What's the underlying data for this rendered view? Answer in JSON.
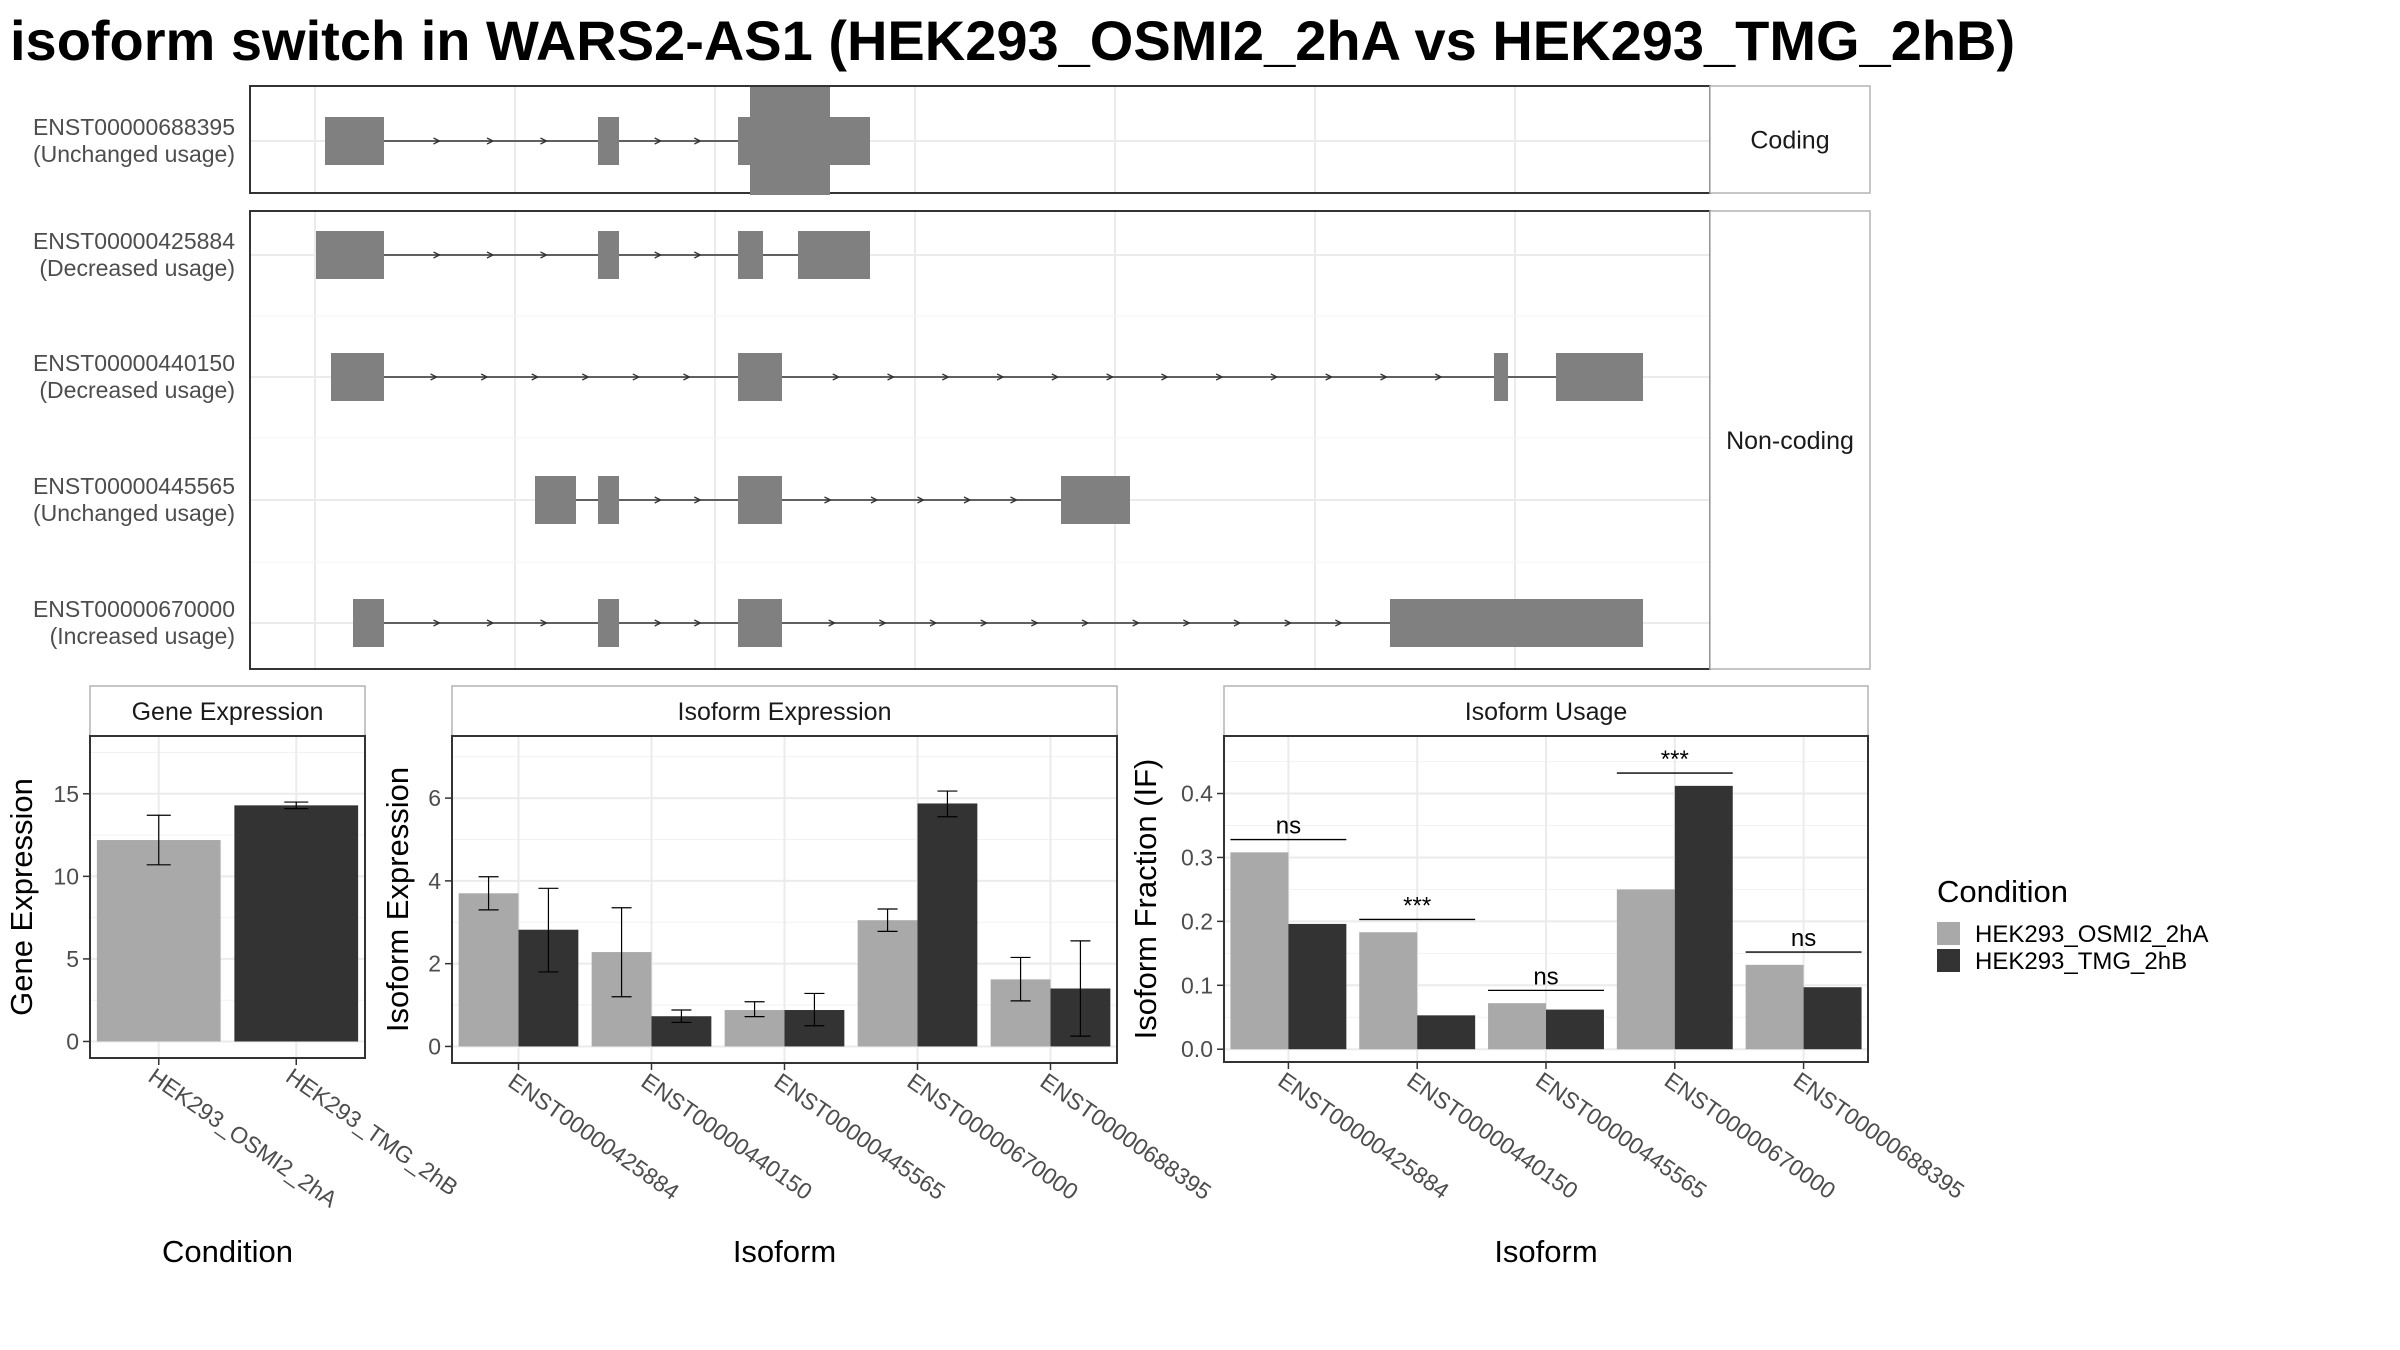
{
  "title": "isoform switch in WARS2-AS1 (HEK293_OSMI2_2hA vs HEK293_TMG_2hB)",
  "colors": {
    "cond1": "#a9a9a9",
    "cond2": "#333333",
    "exon": "#808080"
  },
  "structure": {
    "groups": [
      {
        "label": "Coding",
        "transcripts": [
          0
        ]
      },
      {
        "label": "Non-coding",
        "transcripts": [
          1,
          2,
          3,
          4
        ]
      }
    ],
    "transcripts": [
      {
        "id": "ENST00000688395",
        "usage": "(Unchanged usage)"
      },
      {
        "id": "ENST00000425884",
        "usage": "(Decreased usage)"
      },
      {
        "id": "ENST00000440150",
        "usage": "(Decreased usage)"
      },
      {
        "id": "ENST00000445565",
        "usage": "(Unchanged usage)"
      },
      {
        "id": "ENST00000670000",
        "usage": "(Increased usage)"
      }
    ]
  },
  "legend": {
    "title": "Condition",
    "items": [
      "HEK293_OSMI2_2hA",
      "HEK293_TMG_2hB"
    ]
  },
  "chart_data": [
    {
      "type": "bar",
      "title": "Gene Expression",
      "xlabel": "Condition",
      "ylabel": "Gene Expression",
      "categories": [
        "HEK293_OSMI2_2hA",
        "HEK293_TMG_2hB"
      ],
      "ylim": [
        -1,
        18.5
      ],
      "yticks": [
        0,
        5,
        10,
        15
      ],
      "bars": [
        {
          "value": 12.2,
          "lo": 10.7,
          "hi": 13.7
        },
        {
          "value": 14.3,
          "lo": 14.1,
          "hi": 14.5
        }
      ]
    },
    {
      "type": "bar",
      "title": "Isoform Expression",
      "xlabel": "Isoform",
      "ylabel": "Isoform Expression",
      "categories": [
        "ENST00000425884",
        "ENST00000440150",
        "ENST00000445565",
        "ENST00000670000",
        "ENST00000688395"
      ],
      "ylim": [
        -0.4,
        7.5
      ],
      "yticks": [
        0,
        2,
        4,
        6
      ],
      "series": [
        {
          "name": "HEK293_OSMI2_2hA",
          "values": [
            3.7,
            2.28,
            0.88,
            3.05,
            1.62
          ],
          "lo": [
            3.3,
            1.2,
            0.72,
            2.78,
            1.1
          ],
          "hi": [
            4.1,
            3.35,
            1.08,
            3.32,
            2.15
          ]
        },
        {
          "name": "HEK293_TMG_2hB",
          "values": [
            2.82,
            0.73,
            0.88,
            5.87,
            1.4
          ],
          "lo": [
            1.8,
            0.58,
            0.5,
            5.55,
            0.25
          ],
          "hi": [
            3.82,
            0.88,
            1.28,
            6.17,
            2.55
          ]
        }
      ]
    },
    {
      "type": "bar",
      "title": "Isoform Usage",
      "xlabel": "Isoform",
      "ylabel": "Isoform Fraction (IF)",
      "categories": [
        "ENST00000425884",
        "ENST00000440150",
        "ENST00000445565",
        "ENST00000670000",
        "ENST00000688395"
      ],
      "ylim": [
        -0.02,
        0.49
      ],
      "yticks": [
        0.0,
        0.1,
        0.2,
        0.3,
        0.4
      ],
      "series": [
        {
          "name": "HEK293_OSMI2_2hA",
          "values": [
            0.308,
            0.183,
            0.072,
            0.25,
            0.132
          ]
        },
        {
          "name": "HEK293_TMG_2hB",
          "values": [
            0.196,
            0.053,
            0.062,
            0.412,
            0.097
          ]
        }
      ],
      "significance": [
        "ns",
        "***",
        "ns",
        "***",
        "ns"
      ],
      "sig_line_y": [
        0.328,
        0.203,
        0.092,
        0.432,
        0.152
      ]
    }
  ]
}
